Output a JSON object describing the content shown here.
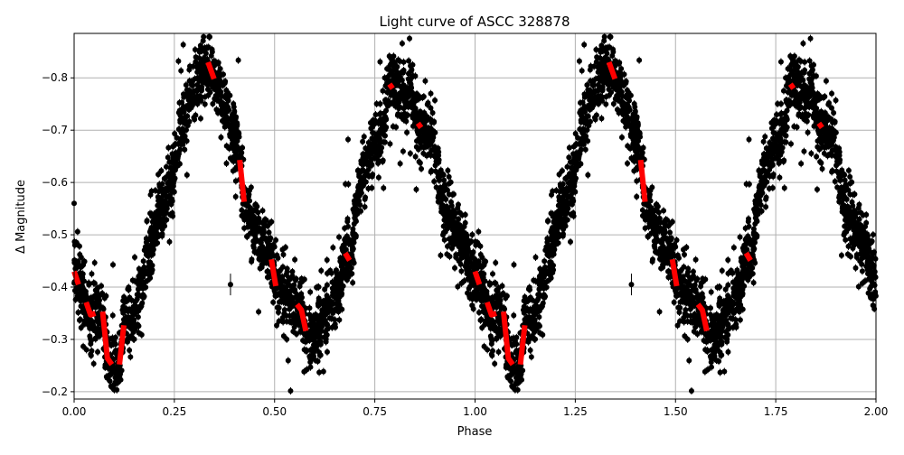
{
  "chart_data": {
    "type": "scatter",
    "title": "Light curve of ASCC 328878",
    "xlabel": "Phase",
    "ylabel": "Δ Magnitude",
    "xlim": [
      0,
      2
    ],
    "ylim": [
      -0.186,
      -0.885
    ],
    "y_inverted": true,
    "grid": true,
    "xticks": [
      "0.00",
      "0.25",
      "0.50",
      "0.75",
      "1.00",
      "1.25",
      "1.50",
      "1.75",
      "2.00"
    ],
    "xtick_values": [
      0,
      0.25,
      0.5,
      0.75,
      1.0,
      1.25,
      1.5,
      1.75,
      2.0
    ],
    "yticks": [
      "−0.8",
      "−0.7",
      "−0.6",
      "−0.5",
      "−0.4",
      "−0.3",
      "−0.2"
    ],
    "ytick_values": [
      -0.8,
      -0.7,
      -0.6,
      -0.5,
      -0.4,
      -0.3,
      -0.2
    ],
    "colors": {
      "observations": "#000000",
      "binned_curve": "#ff0000",
      "grid": "#b0b0b0"
    },
    "binned_curve": {
      "phase": [
        0.0,
        0.011,
        0.03,
        0.041,
        0.053,
        0.071,
        0.083,
        0.094,
        0.113,
        0.124,
        0.15,
        0.195,
        0.218,
        0.24,
        0.259,
        0.282,
        0.297,
        0.319,
        0.334,
        0.349,
        0.39,
        0.413,
        0.424,
        0.45,
        0.492,
        0.503,
        0.556,
        0.567,
        0.578,
        0.593,
        0.612,
        0.634,
        0.661,
        0.676,
        0.687,
        0.709,
        0.739,
        0.77,
        0.785,
        0.796,
        0.826,
        0.841,
        0.856,
        0.867,
        0.893,
        0.916,
        0.946,
        0.983,
        1.006
      ],
      "magnitude": [
        -0.43,
        -0.405,
        -0.371,
        -0.347,
        -0.35,
        -0.353,
        -0.264,
        -0.252,
        -0.252,
        -0.327,
        -0.35,
        -0.494,
        -0.551,
        -0.591,
        -0.672,
        -0.758,
        -0.772,
        -0.798,
        -0.83,
        -0.798,
        -0.712,
        -0.643,
        -0.563,
        -0.517,
        -0.453,
        -0.402,
        -0.367,
        -0.356,
        -0.316,
        -0.301,
        -0.344,
        -0.353,
        -0.396,
        -0.465,
        -0.451,
        -0.586,
        -0.649,
        -0.695,
        -0.781,
        -0.787,
        -0.767,
        -0.778,
        -0.706,
        -0.712,
        -0.672,
        -0.583,
        -0.517,
        -0.459,
        -0.407
      ]
    },
    "outliers": {
      "phase": [
        0.39,
        1.39,
        0.0
      ],
      "magnitude": [
        -0.405,
        -0.405,
        -0.56
      ]
    }
  }
}
